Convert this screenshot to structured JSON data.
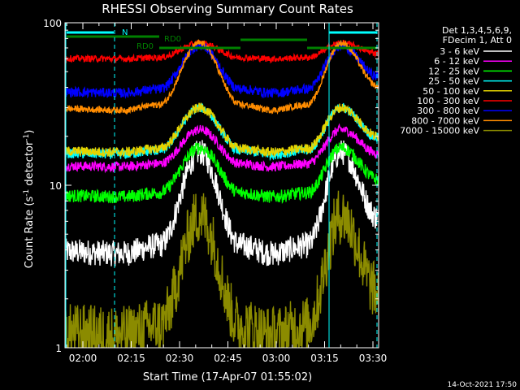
{
  "chart_data": {
    "type": "line",
    "title": "RHESSI Observing Summary Count Rates",
    "xlabel": "Start Time (17-Apr-07 01:55:02)",
    "ylabel_main": "Count Rate (s",
    "ylabel_exp": "-1",
    "ylabel_rest": " detector",
    "ylabel_close": ")",
    "y_scale": "log",
    "ylim": [
      1,
      100
    ],
    "y_tick_labels": [
      "1",
      "10",
      "100"
    ],
    "x_tick_labels": [
      "02:00",
      "02:15",
      "02:30",
      "02:45",
      "03:00",
      "03:15",
      "03:30"
    ],
    "legend_title_1": "Det 1,3,4,5,6,9,",
    "legend_title_2": "FDecim 1, Att 0",
    "legend_position": "top-right",
    "timestamp": "14-Oct-2021 17:50",
    "night_label": "N",
    "rd_labels": [
      "RD0",
      "RD0"
    ],
    "series": [
      {
        "name": "3 - 6 keV",
        "color": "#ffffff",
        "min": 3.8,
        "max": 16,
        "noise": 0.08
      },
      {
        "name": "6 - 12 keV",
        "color": "#ff00ff",
        "min": 13,
        "max": 22,
        "noise": 0.03
      },
      {
        "name": "12 - 25 keV",
        "color": "#00ff00",
        "min": 8.5,
        "max": 17,
        "noise": 0.04
      },
      {
        "name": "25 - 50 keV",
        "color": "#00ffff",
        "min": 15.5,
        "max": 30,
        "noise": 0.03
      },
      {
        "name": "50 - 100 keV",
        "color": "#e5d400",
        "min": 16,
        "max": 30,
        "noise": 0.03
      },
      {
        "name": "100 - 300 keV",
        "color": "#ff0000",
        "min": 60,
        "max": 75,
        "noise": 0.02
      },
      {
        "name": "300 - 800 keV",
        "color": "#0000ff",
        "min": 37,
        "max": 72,
        "noise": 0.03
      },
      {
        "name": "800 - 7000 keV",
        "color": "#ff8c00",
        "min": 29,
        "max": 75,
        "noise": 0.02
      },
      {
        "name": "7000 - 15000 keV",
        "color": "#8b8b00",
        "min": 1.2,
        "max": 6.5,
        "noise": 0.18
      }
    ]
  }
}
